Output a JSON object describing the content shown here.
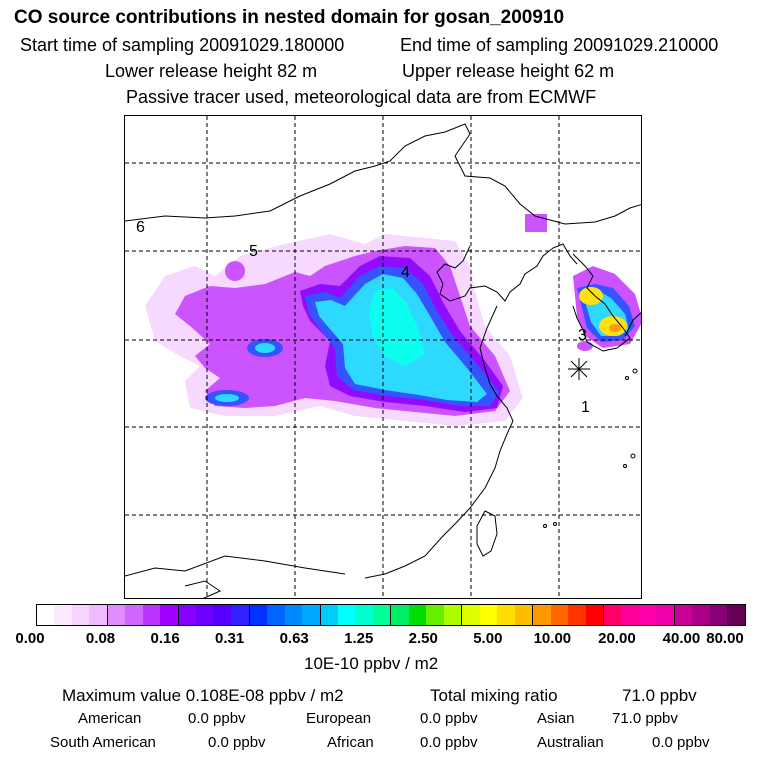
{
  "header": {
    "title": "CO  source contributions in nested domain for gosan_200910",
    "start_label": "Start time of sampling 20091029.180000",
    "end_label": "End time of sampling 20091029.210000",
    "lower_label": "Lower release height   82 m",
    "upper_label": "Upper release height   62 m",
    "tracer_note": "Passive tracer used, meteorological data are from ECMWF"
  },
  "map": {
    "region_labels": [
      "1",
      "3",
      "4",
      "5",
      "6"
    ],
    "receptor_marker": "asterisk-icon",
    "plume_colors": [
      "#ff66ff",
      "#cc22ff",
      "#9900ff",
      "#2233ff",
      "#0099ff",
      "#00ffff",
      "#ffff00",
      "#ffcc00"
    ]
  },
  "colorbar": {
    "colors": [
      "#ffffff",
      "#fbe9ff",
      "#f7d4ff",
      "#efbaff",
      "#e08cff",
      "#d066ff",
      "#bb33ff",
      "#a000ff",
      "#8800ff",
      "#6d00ff",
      "#5500ff",
      "#3322ff",
      "#0033ff",
      "#0066ff",
      "#0088ff",
      "#00aaff",
      "#00ccff",
      "#00ffff",
      "#00ffcc",
      "#00ff99",
      "#00ee66",
      "#00dd00",
      "#66ee00",
      "#aaff00",
      "#ddff00",
      "#ffff00",
      "#ffdd00",
      "#ffbb00",
      "#ff9900",
      "#ff6600",
      "#ff3300",
      "#ff0000",
      "#ff0066",
      "#ff0099",
      "#ff00aa",
      "#ee00aa",
      "#cc0099",
      "#aa0088",
      "#880077",
      "#660055"
    ],
    "ticks": [
      "0.00",
      "0.08",
      "0.16",
      "0.31",
      "0.63",
      "1.25",
      "2.50",
      "5.00",
      "10.00",
      "20.00",
      "40.00",
      "80.00"
    ],
    "unit": "10E-10 ppbv / m2"
  },
  "summary": {
    "max_label": "Maximum value  0.108E-08 ppbv / m2",
    "total_label": "Total mixing ratio",
    "total_value": "71.0 ppbv",
    "american_label": "American",
    "american_value": "0.0 ppbv",
    "european_label": "European",
    "european_value": "0.0 ppbv",
    "asian_label": "Asian",
    "asian_value": "71.0 ppbv",
    "south_american_label": "South American",
    "south_american_value": "0.0 ppbv",
    "african_label": "African",
    "african_value": "0.0 ppbv",
    "australian_label": "Australian",
    "australian_value": "0.0 ppbv"
  }
}
